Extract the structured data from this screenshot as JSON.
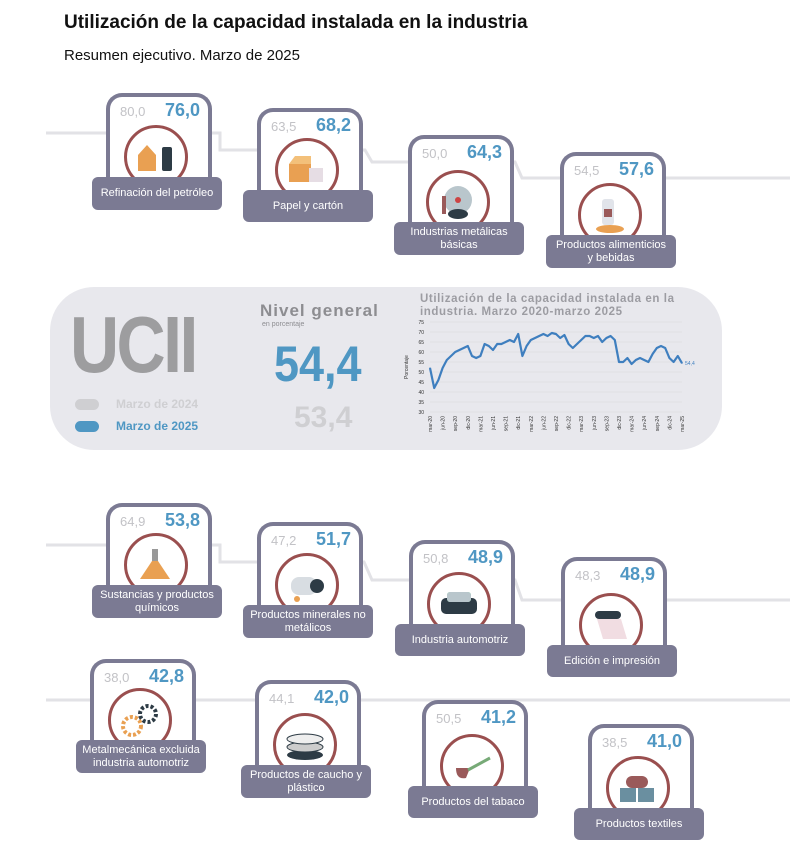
{
  "header": {
    "title": "Utilización de la capacidad instalada en la industria",
    "subtitle": "Resumen ejecutivo. Marzo de 2025"
  },
  "colors": {
    "current": "#4f97c3",
    "previous": "#c2c2c6",
    "frame": "#7b7a93",
    "circle": "#9a4f4f",
    "line": "#3f7fbf"
  },
  "sectors": [
    {
      "name": "Refinación del petróleo",
      "prev": "80,0",
      "curr": "76,0",
      "icon": "refinery-icon"
    },
    {
      "name": "Papel y cartón",
      "prev": "63,5",
      "curr": "68,2",
      "icon": "box-icon"
    },
    {
      "name": "Industrias metálicas básicas",
      "prev": "50,0",
      "curr": "64,3",
      "icon": "metal-icon"
    },
    {
      "name": "Productos alimenticios y bebidas",
      "prev": "54,5",
      "curr": "57,6",
      "icon": "bottle-bread-icon"
    },
    {
      "name": "Sustancias y productos químicos",
      "prev": "64,9",
      "curr": "53,8",
      "icon": "flask-icon"
    },
    {
      "name": "Productos minerales no metálicos",
      "prev": "47,2",
      "curr": "51,7",
      "icon": "cement-mixer-icon"
    },
    {
      "name": "Industria automotriz",
      "prev": "50,8",
      "curr": "48,9",
      "icon": "car-icon"
    },
    {
      "name": "Edición e impresión",
      "prev": "48,3",
      "curr": "48,9",
      "icon": "paper-roll-icon"
    },
    {
      "name": "Metalmecánica excluida industria automotriz",
      "prev": "38,0",
      "curr": "42,8",
      "icon": "gears-icon"
    },
    {
      "name": "Productos de caucho y plástico",
      "prev": "44,1",
      "curr": "42,0",
      "icon": "plates-icon"
    },
    {
      "name": "Productos del tabaco",
      "prev": "50,5",
      "curr": "41,2",
      "icon": "pipe-icon"
    },
    {
      "name": "Productos textiles",
      "prev": "38,5",
      "curr": "41,0",
      "icon": "fabric-icon"
    }
  ],
  "summary": {
    "logo": "UCII",
    "level_title": "Nivel general",
    "level_unit": "en porcentaje",
    "current_value": "54,4",
    "previous_value": "53,4",
    "legend_prev": "Marzo de 2024",
    "legend_curr": "Marzo de 2025"
  },
  "chart_data": {
    "type": "line",
    "title": "Utilización de la capacidad instalada en la industria. Marzo 2020-marzo 2025",
    "ylabel": "Porcentaje",
    "ylim": [
      30,
      75
    ],
    "yticks": [
      30,
      35,
      40,
      45,
      50,
      55,
      60,
      65,
      70,
      75
    ],
    "grid": true,
    "xtick_labels": [
      "mar-20",
      "jun-20",
      "sep-20",
      "dic-20",
      "mar-21",
      "jun-21",
      "sep-21",
      "dic-21",
      "mar-22",
      "jun-22",
      "sep-22",
      "dic-22",
      "mar-23",
      "jun-23",
      "sep-23",
      "dic-23",
      "mar-24",
      "jun-24",
      "sep-24",
      "dic-24",
      "mar-25"
    ],
    "values": [
      52,
      42,
      46,
      52,
      56,
      58,
      60,
      61,
      62,
      63,
      58,
      57,
      58,
      64,
      63,
      61,
      64,
      64,
      65,
      66,
      65,
      69,
      58,
      63,
      66,
      67,
      68,
      69,
      68,
      69.5,
      69,
      67,
      68.5,
      64,
      62,
      64,
      66,
      68,
      68,
      67,
      68,
      65,
      67,
      68,
      66,
      55,
      55,
      57,
      54,
      56,
      57,
      56,
      55,
      59,
      62,
      63,
      62,
      57,
      55,
      58,
      54.4
    ],
    "end_label": "54,4"
  }
}
